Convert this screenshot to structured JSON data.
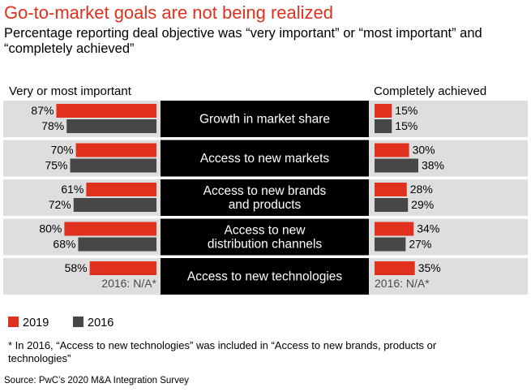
{
  "title": "Go-to-market goals are not being realized",
  "subtitle": "Percentage reporting deal objective was “very important” or “most important” and “completely achieved”",
  "colors": {
    "series_2019": "#e0301e",
    "series_2016": "#474747",
    "row_background": "#dedede",
    "label_background": "#000000",
    "title": "#e0301e"
  },
  "legend": {
    "items": [
      {
        "label": "2019",
        "color": "#e0301e"
      },
      {
        "label": "2016",
        "color": "#474747"
      }
    ]
  },
  "footnote": "* In 2016, “Access to new technologies” was included in “Access to new brands, products or technologies”",
  "source": "Source: PwC’s 2020 M&A Integration Survey",
  "chart_data": {
    "type": "bar",
    "orientation": "horizontal",
    "layout": "butterfly",
    "unit": "%",
    "categories": [
      "Growth in market share",
      "Access to new markets",
      "Access to new brands and products",
      "Access to new distribution channels",
      "Access to new technologies"
    ],
    "category_lines": [
      [
        "Growth in market share"
      ],
      [
        "Access to new markets"
      ],
      [
        "Access to new brands",
        "and products"
      ],
      [
        "Access to new",
        "distribution channels"
      ],
      [
        "Access to new technologies"
      ]
    ],
    "panels": [
      {
        "title": "Very or most important",
        "side": "left",
        "xlim": [
          0,
          100
        ],
        "series": [
          {
            "name": "2019",
            "values": [
              87,
              70,
              61,
              80,
              58
            ]
          },
          {
            "name": "2016",
            "values": [
              78,
              75,
              72,
              68,
              null
            ]
          }
        ]
      },
      {
        "title": "Completely achieved",
        "side": "right",
        "xlim": [
          0,
          100
        ],
        "series": [
          {
            "name": "2019",
            "values": [
              15,
              30,
              28,
              34,
              35
            ]
          },
          {
            "name": "2016",
            "values": [
              15,
              38,
              29,
              27,
              null
            ]
          }
        ]
      }
    ],
    "na_note": "2016: N/A*"
  }
}
